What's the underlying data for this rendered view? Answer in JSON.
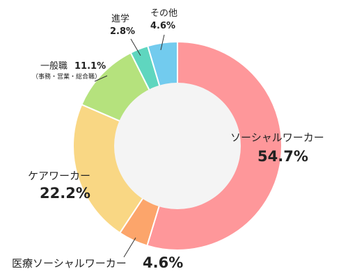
{
  "chart_data": {
    "type": "pie",
    "title": "",
    "donut": true,
    "categories": [
      "ソーシャルワーカー",
      "医療ソーシャルワーカー",
      "ケアワーカー",
      "一般職",
      "進学",
      "その他"
    ],
    "values": [
      54.7,
      4.6,
      22.2,
      11.1,
      2.8,
      4.6
    ],
    "value_labels": [
      "54.7%",
      "4.6%",
      "22.2%",
      "11.1%",
      "2.8%",
      "4.6%"
    ],
    "colors": [
      "#fe979a",
      "#fca56b",
      "#f9d784",
      "#b5e27d",
      "#5fd6bf",
      "#72cbee"
    ],
    "center_color": "#f4f4f4",
    "annotations": {
      "general_detail": "（事務・営業・総合職）"
    }
  }
}
